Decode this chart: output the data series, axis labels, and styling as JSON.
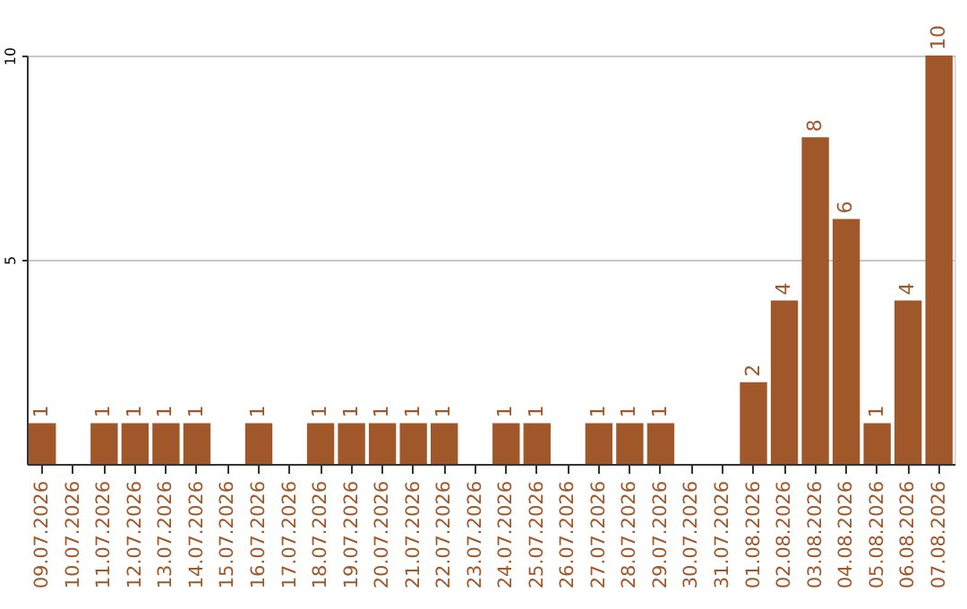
{
  "chart_data": {
    "type": "bar",
    "categories": [
      "09.07.2026",
      "10.07.2026",
      "11.07.2026",
      "12.07.2026",
      "13.07.2026",
      "14.07.2026",
      "15.07.2026",
      "16.07.2026",
      "17.07.2026",
      "18.07.2026",
      "19.07.2026",
      "20.07.2026",
      "21.07.2026",
      "22.07.2026",
      "23.07.2026",
      "24.07.2026",
      "25.07.2026",
      "26.07.2026",
      "27.07.2026",
      "28.07.2026",
      "29.07.2026",
      "30.07.2026",
      "31.07.2026",
      "01.08.2026",
      "02.08.2026",
      "03.08.2026",
      "04.08.2026",
      "05.08.2026",
      "06.08.2026",
      "07.08.2026"
    ],
    "values": [
      1,
      0,
      1,
      1,
      1,
      1,
      0,
      1,
      0,
      1,
      1,
      1,
      1,
      1,
      0,
      1,
      1,
      0,
      1,
      1,
      1,
      0,
      0,
      2,
      4,
      8,
      6,
      1,
      4,
      10
    ],
    "value_labels": [
      "1",
      null,
      "1",
      "1",
      "1",
      "1",
      null,
      "1",
      null,
      "1",
      "1",
      "1",
      "1",
      "1",
      null,
      "1",
      "1",
      null,
      "1",
      "1",
      "1",
      null,
      null,
      "2",
      "4",
      "8",
      "6",
      "1",
      "4",
      "10"
    ],
    "color": "#a0582a",
    "ylim": [
      0,
      10
    ],
    "yticks": [
      5,
      10
    ],
    "grid": "y"
  }
}
